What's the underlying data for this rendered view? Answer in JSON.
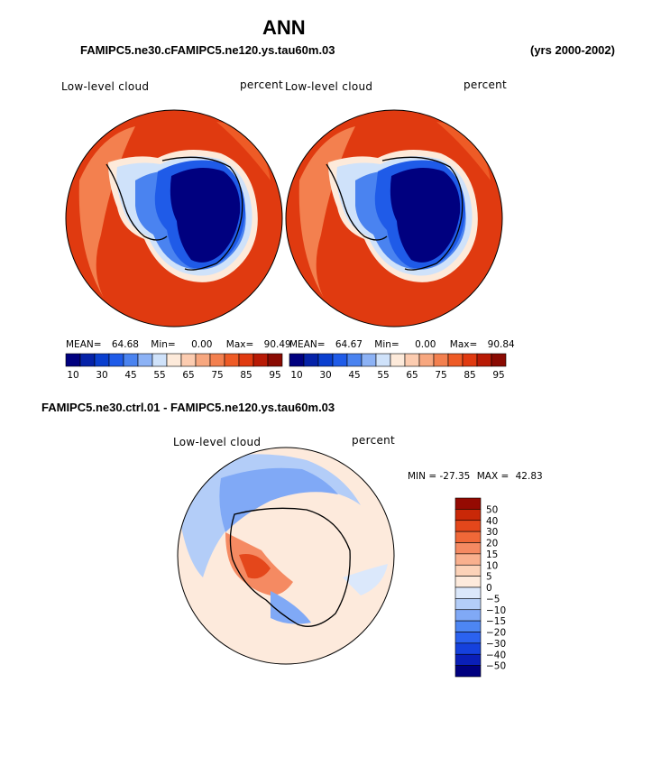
{
  "page": {
    "title": "ANN",
    "top_left_caption": "FAMIPC5.ne30.cFAMIPC5.ne120.ys.tau60m.03",
    "top_right_caption": "(yrs 2000-2002)",
    "diff_caption": "FAMIPC5.ne30.ctrl.01 - FAMIPC5.ne120.ys.tau60m.03"
  },
  "palettes": {
    "abs": [
      "#00007f",
      "#0522a8",
      "#0a3fcf",
      "#1f5be8",
      "#4a83f0",
      "#8cb2f5",
      "#cfe2fa",
      "#fdeada",
      "#fcccb0",
      "#f7a77f",
      "#f3804f",
      "#ee5b26",
      "#e03a10",
      "#b81a05",
      "#8a0a02"
    ],
    "diff": [
      "#00007f",
      "#0a1fb8",
      "#1541dd",
      "#2b62ef",
      "#4d86f3",
      "#80a9f6",
      "#b3cdf8",
      "#dbe8fb",
      "#fdeadc",
      "#fcd2b8",
      "#f9b08e",
      "#f58a62",
      "#f06838",
      "#e4471b",
      "#c92808",
      "#950a02"
    ]
  },
  "chart_data": [
    {
      "type": "heatmap",
      "title": "Low-level cloud",
      "units": "percent",
      "projection": "south polar stereographic",
      "stats": {
        "mean_label": "MEAN=",
        "mean": "64.68",
        "min_label": "Min=",
        "min": "0.00",
        "max_label": "Max=",
        "max": "90.49"
      },
      "colorbar_ticks": [
        "10",
        "30",
        "45",
        "55",
        "65",
        "75",
        "85",
        "95"
      ]
    },
    {
      "type": "heatmap",
      "title": "Low-level cloud",
      "units": "percent",
      "projection": "south polar stereographic",
      "stats": {
        "mean_label": "MEAN=",
        "mean": "64.67",
        "min_label": "Min=",
        "min": "0.00",
        "max_label": "Max=",
        "max": "90.84"
      },
      "colorbar_ticks": [
        "10",
        "30",
        "45",
        "55",
        "65",
        "75",
        "85",
        "95"
      ]
    },
    {
      "type": "heatmap",
      "title": "Low-level cloud",
      "units": "percent",
      "projection": "south polar stereographic",
      "stats": {
        "min_label": "MIN =",
        "min": "-27.35",
        "max_label": "MAX =",
        "max": "42.83"
      },
      "colorbar_ticks": [
        "50",
        "40",
        "30",
        "20",
        "15",
        "10",
        "5",
        "0",
        "−5",
        "−10",
        "−15",
        "−20",
        "−30",
        "−40",
        "−50"
      ]
    }
  ]
}
